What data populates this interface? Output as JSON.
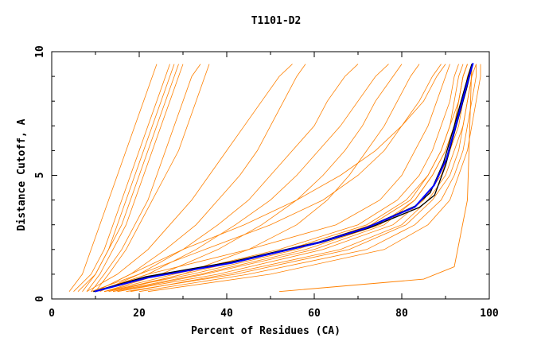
{
  "chart_data": {
    "type": "line",
    "title": "T1101-D2",
    "xlabel": "Percent of Residues (CA)",
    "ylabel": "Distance Cutoff, A",
    "xlim": [
      0,
      100
    ],
    "ylim": [
      0,
      10
    ],
    "xticks": [
      "0",
      "20",
      "40",
      "60",
      "80",
      "100"
    ],
    "yticks": [
      "0",
      "5",
      "10"
    ],
    "grid": false,
    "legend": "none",
    "colors": {
      "models": "#ff8000",
      "highlight": "#0000ff",
      "reference": "#000000"
    },
    "y_levels": [
      0.3,
      1,
      2,
      3,
      4,
      5,
      6,
      7,
      8,
      9,
      9.5
    ],
    "model_series_x": [
      [
        4,
        7,
        9,
        11,
        13,
        15,
        17,
        19,
        21,
        23,
        24
      ],
      [
        5,
        9,
        12,
        14,
        16,
        18,
        20,
        22,
        24,
        26,
        27
      ],
      [
        6,
        10,
        13,
        15,
        17,
        19,
        21,
        23,
        25,
        27,
        28
      ],
      [
        8,
        11,
        14,
        17,
        19,
        21,
        23,
        25,
        27,
        29,
        30
      ],
      [
        9,
        12,
        16,
        19,
        22,
        24,
        26,
        28,
        30,
        32,
        34
      ],
      [
        10,
        13,
        17,
        20,
        23,
        26,
        29,
        31,
        33,
        35,
        36
      ],
      [
        7,
        10,
        13,
        16,
        18,
        20,
        22,
        24,
        26,
        28,
        29
      ],
      [
        8,
        15,
        22,
        27,
        32,
        36,
        40,
        44,
        48,
        52,
        55
      ],
      [
        10,
        18,
        26,
        33,
        38,
        43,
        47,
        50,
        53,
        56,
        58
      ],
      [
        9,
        20,
        30,
        38,
        45,
        50,
        55,
        60,
        63,
        67,
        70
      ],
      [
        10,
        22,
        33,
        42,
        50,
        56,
        61,
        66,
        70,
        74,
        77
      ],
      [
        12,
        25,
        38,
        48,
        56,
        62,
        67,
        71,
        74,
        78,
        80
      ],
      [
        14,
        30,
        45,
        56,
        63,
        68,
        72,
        76,
        79,
        82,
        84
      ],
      [
        11,
        20,
        35,
        50,
        62,
        70,
        76,
        80,
        84,
        87,
        89
      ],
      [
        10,
        18,
        30,
        44,
        56,
        66,
        74,
        80,
        85,
        88,
        90
      ],
      [
        10,
        22,
        45,
        65,
        75,
        80,
        83,
        86,
        88,
        90,
        91
      ],
      [
        12,
        28,
        52,
        70,
        79,
        84,
        87,
        89,
        91,
        92,
        93
      ],
      [
        15,
        35,
        60,
        76,
        83,
        87,
        90,
        92,
        93,
        94,
        95
      ],
      [
        18,
        40,
        66,
        80,
        86,
        90,
        92,
        94,
        95,
        96,
        96
      ],
      [
        20,
        45,
        72,
        83,
        89,
        92,
        94,
        95,
        96,
        97,
        97
      ],
      [
        22,
        50,
        76,
        86,
        91,
        93,
        95,
        96,
        97,
        98,
        98
      ],
      [
        15,
        38,
        62,
        78,
        85,
        89,
        91,
        93,
        94,
        95,
        96
      ],
      [
        12,
        32,
        56,
        73,
        82,
        86,
        89,
        91,
        92,
        93,
        94
      ],
      [
        14,
        34,
        58,
        75,
        83,
        87,
        90,
        92,
        93,
        94,
        95
      ],
      [
        17,
        42,
        68,
        81,
        87,
        91,
        93,
        94,
        95,
        96,
        97
      ],
      [
        13,
        30,
        54,
        72,
        81,
        86,
        89,
        91,
        93,
        94,
        95
      ]
    ],
    "outlier_series": [
      [
        52,
        0.3
      ],
      [
        85,
        0.8
      ],
      [
        92,
        1.3
      ],
      [
        95,
        4
      ],
      [
        96,
        9.5
      ]
    ],
    "reference_series": [
      [
        [
          9.5,
          0.3
        ],
        [
          21.5,
          0.9
        ],
        [
          41,
          1.5
        ],
        [
          61,
          2.3
        ],
        [
          72,
          2.9
        ],
        [
          83,
          3.75
        ],
        [
          86.5,
          4.3
        ],
        [
          89.5,
          5.5
        ],
        [
          92,
          7.0
        ],
        [
          94.5,
          8.6
        ],
        [
          96,
          9.5
        ]
      ],
      [
        [
          9.8,
          0.3
        ],
        [
          22,
          0.88
        ],
        [
          41.5,
          1.47
        ],
        [
          61.5,
          2.28
        ],
        [
          72.5,
          2.87
        ],
        [
          84,
          3.7
        ],
        [
          87.5,
          4.2
        ],
        [
          90,
          5.4
        ],
        [
          92.3,
          6.9
        ],
        [
          94.8,
          8.5
        ],
        [
          96.2,
          9.5
        ]
      ]
    ],
    "highlight_series": [
      [
        9.8,
        0.3
      ],
      [
        21.9,
        0.86
      ],
      [
        41.2,
        1.46
      ],
      [
        60.9,
        2.27
      ],
      [
        71.7,
        2.86
      ],
      [
        83,
        3.72
      ],
      [
        87.4,
        4.6
      ],
      [
        90.2,
        5.66
      ],
      [
        92.6,
        7.18
      ],
      [
        94.7,
        8.57
      ],
      [
        96.3,
        9.54
      ]
    ]
  }
}
